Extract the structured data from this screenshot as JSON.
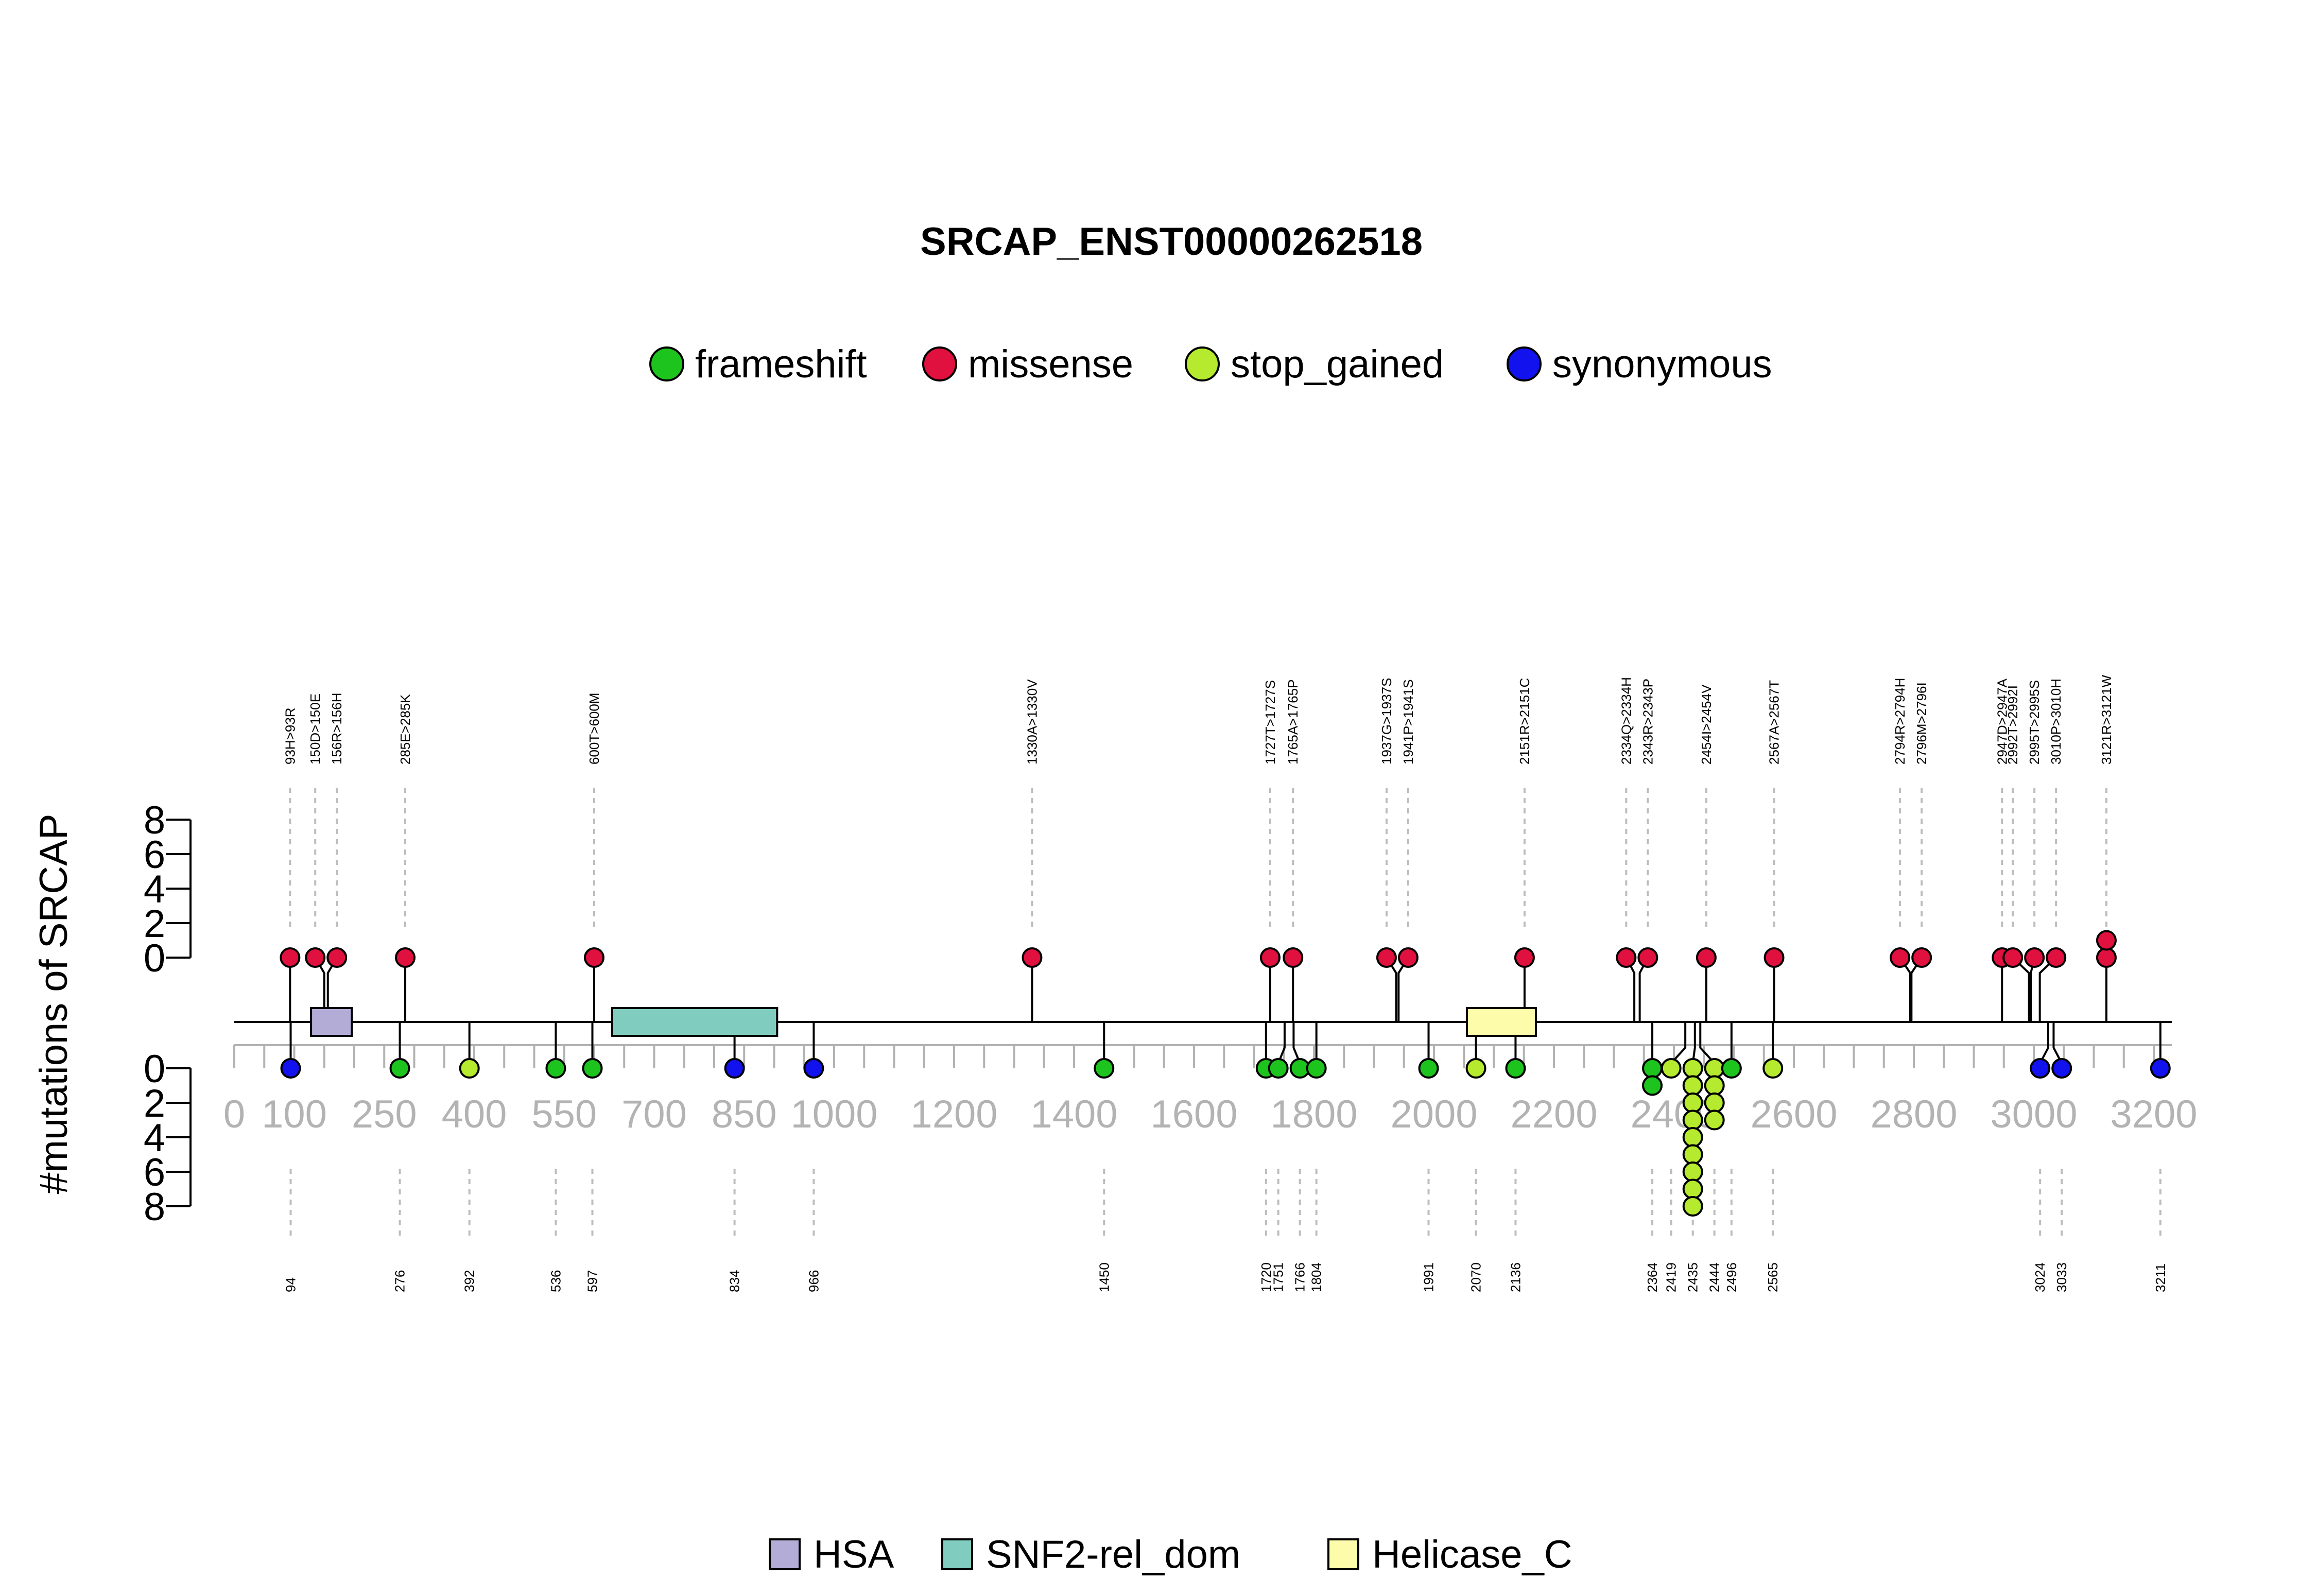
{
  "chart_data": {
    "type": "lollipop",
    "title": "SRCAP_ENST00000262518",
    "ylabel": "#mutations of SRCAP",
    "protein_length": 3230,
    "xlim": [
      0,
      3230
    ],
    "x_ticks": [
      0,
      100,
      250,
      400,
      550,
      700,
      850,
      1000,
      1200,
      1400,
      1600,
      1800,
      2000,
      2200,
      2400,
      2600,
      2800,
      3000,
      3200
    ],
    "y_ticks_top": [
      0,
      2,
      4,
      6,
      8
    ],
    "y_ticks_bottom": [
      0,
      2,
      4,
      6,
      8
    ],
    "ylim": [
      0,
      8
    ],
    "legend_variants": [
      {
        "name": "frameshift",
        "color": "#1ec41e"
      },
      {
        "name": "missense",
        "color": "#e0103f"
      },
      {
        "name": "stop_gained",
        "color": "#b5ea2e"
      },
      {
        "name": "synonymous",
        "color": "#1212ee"
      }
    ],
    "domains": [
      {
        "name": "HSA",
        "start": 128,
        "end": 196,
        "color": "#b3acd6"
      },
      {
        "name": "SNF2-rel_dom",
        "start": 630,
        "end": 905,
        "color": "#80cdbf"
      },
      {
        "name": "Helicase_C",
        "start": 2055,
        "end": 2170,
        "color": "#fdfcaa"
      }
    ],
    "top_mutations": [
      {
        "pos": 93,
        "label": "93H>93R",
        "count": 1,
        "type": "missense"
      },
      {
        "pos": 150,
        "label": "150D>150E",
        "count": 1,
        "type": "missense"
      },
      {
        "pos": 156,
        "label": "156R>156H",
        "count": 1,
        "type": "missense"
      },
      {
        "pos": 285,
        "label": "285E>285K",
        "count": 1,
        "type": "missense"
      },
      {
        "pos": 600,
        "label": "600T>600M",
        "count": 1,
        "type": "missense"
      },
      {
        "pos": 1330,
        "label": "1330A>1330V",
        "count": 1,
        "type": "missense"
      },
      {
        "pos": 1727,
        "label": "1727T>1727S",
        "count": 1,
        "type": "missense"
      },
      {
        "pos": 1765,
        "label": "1765A>1765P",
        "count": 1,
        "type": "missense"
      },
      {
        "pos": 1937,
        "label": "1937G>1937S",
        "count": 1,
        "type": "missense"
      },
      {
        "pos": 1941,
        "label": "1941P>1941S",
        "count": 1,
        "type": "missense"
      },
      {
        "pos": 2151,
        "label": "2151R>2151C",
        "count": 1,
        "type": "missense"
      },
      {
        "pos": 2334,
        "label": "2334Q>2334H",
        "count": 1,
        "type": "missense"
      },
      {
        "pos": 2343,
        "label": "2343R>2343P",
        "count": 1,
        "type": "missense"
      },
      {
        "pos": 2454,
        "label": "2454I>2454V",
        "count": 1,
        "type": "missense"
      },
      {
        "pos": 2567,
        "label": "2567A>2567T",
        "count": 1,
        "type": "missense"
      },
      {
        "pos": 2794,
        "label": "2794R>2794H",
        "count": 1,
        "type": "missense"
      },
      {
        "pos": 2796,
        "label": "2796M>2796I",
        "count": 1,
        "type": "missense"
      },
      {
        "pos": 2947,
        "label": "2947D>2947A",
        "count": 1,
        "type": "missense"
      },
      {
        "pos": 2992,
        "label": "2992T>2992I",
        "count": 1,
        "type": "missense"
      },
      {
        "pos": 2995,
        "label": "2995T>2995S",
        "count": 1,
        "type": "missense"
      },
      {
        "pos": 3010,
        "label": "3010P>3010H",
        "count": 1,
        "type": "missense"
      },
      {
        "pos": 3121,
        "label": "3121R>3121W",
        "count": 2,
        "type": "missense"
      }
    ],
    "bottom_mutations": [
      {
        "pos": 94,
        "label": "94",
        "count": 1,
        "type": "synonymous"
      },
      {
        "pos": 276,
        "label": "276",
        "count": 1,
        "type": "frameshift"
      },
      {
        "pos": 392,
        "label": "392",
        "count": 1,
        "type": "stop_gained"
      },
      {
        "pos": 536,
        "label": "536",
        "count": 1,
        "type": "frameshift"
      },
      {
        "pos": 597,
        "label": "597",
        "count": 1,
        "type": "frameshift"
      },
      {
        "pos": 834,
        "label": "834",
        "count": 1,
        "type": "synonymous"
      },
      {
        "pos": 966,
        "label": "966",
        "count": 1,
        "type": "synonymous"
      },
      {
        "pos": 1450,
        "label": "1450",
        "count": 1,
        "type": "frameshift"
      },
      {
        "pos": 1720,
        "label": "1720",
        "count": 1,
        "type": "frameshift"
      },
      {
        "pos": 1751,
        "label": "1751",
        "count": 1,
        "type": "frameshift"
      },
      {
        "pos": 1766,
        "label": "1766",
        "count": 1,
        "type": "frameshift"
      },
      {
        "pos": 1804,
        "label": "1804",
        "count": 1,
        "type": "frameshift"
      },
      {
        "pos": 1991,
        "label": "1991",
        "count": 1,
        "type": "frameshift"
      },
      {
        "pos": 2070,
        "label": "2070",
        "count": 1,
        "type": "stop_gained"
      },
      {
        "pos": 2136,
        "label": "2136",
        "count": 1,
        "type": "frameshift"
      },
      {
        "pos": 2364,
        "label": "2364",
        "count": 2,
        "type": "frameshift"
      },
      {
        "pos": 2419,
        "label": "2419",
        "count": 1,
        "type": "stop_gained"
      },
      {
        "pos": 2435,
        "label": "2435",
        "count": 9,
        "type": "stop_gained"
      },
      {
        "pos": 2444,
        "label": "2444",
        "count": 4,
        "type": "stop_gained"
      },
      {
        "pos": 2496,
        "label": "2496",
        "count": 1,
        "type": "frameshift"
      },
      {
        "pos": 2565,
        "label": "2565",
        "count": 1,
        "type": "stop_gained"
      },
      {
        "pos": 3024,
        "label": "3024",
        "count": 1,
        "type": "synonymous"
      },
      {
        "pos": 3033,
        "label": "3033",
        "count": 1,
        "type": "synonymous"
      },
      {
        "pos": 3211,
        "label": "3211",
        "count": 1,
        "type": "synonymous"
      }
    ]
  }
}
